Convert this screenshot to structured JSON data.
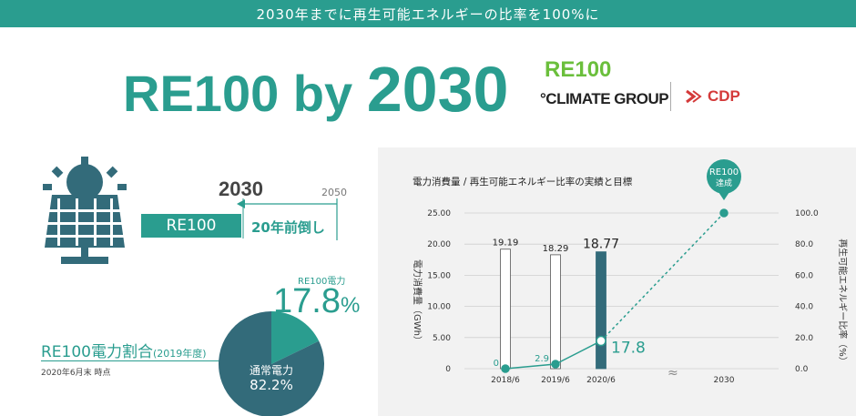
{
  "banner": "2030年までに再生可能エネルギーの比率を100%に",
  "headline": {
    "prefix": "RE100 by ",
    "year": "2030"
  },
  "logos": {
    "re100": "RE100",
    "climate_group": "°CLIMATE GROUP",
    "cdp": "CDP"
  },
  "timeline": {
    "year_target": "2030",
    "year_original": "2050",
    "bar_label": "RE100",
    "ahead_label": "20年前倒し"
  },
  "share": {
    "title": "RE100電力割合",
    "title_sub": "(2019年度)",
    "as_of": "2020年6月末 時点",
    "re100_label": "RE100電力",
    "re100_value": "17.8",
    "pct_sign": "%",
    "normal_label": "通常電力",
    "normal_value": "82.2%"
  },
  "colors": {
    "accent": "#2a9d8f",
    "dark_bar": "#336b7a",
    "pie_dark": "#336b7a",
    "panel_bg": "#f2f2f2"
  },
  "chart_data": {
    "type": "bar",
    "title": "電力消費量 / 再生可能エネルギー比率の実績と目標",
    "categories": [
      "2018/6",
      "2019/6",
      "2020/6",
      "2030"
    ],
    "y_left_label": "電力消費量（GWh）",
    "y_right_label": "再生可能エネルギー比率（%）",
    "y_left_ticks": [
      "0",
      "5.00",
      "10.00",
      "15.00",
      "20.00",
      "25.00"
    ],
    "y_right_ticks": [
      "0.0",
      "20.0",
      "40.0",
      "60.0",
      "80.0",
      "100.0"
    ],
    "ylim_left": [
      0,
      25
    ],
    "ylim_right": [
      0,
      100
    ],
    "bars": [
      {
        "category": "2018/6",
        "value": 19.19,
        "label": "19.19",
        "style": "outline"
      },
      {
        "category": "2019/6",
        "value": 18.29,
        "label": "18.29",
        "style": "outline"
      },
      {
        "category": "2020/6",
        "value": 18.77,
        "label": "18.77",
        "style": "filled"
      }
    ],
    "ratio": [
      {
        "category": "2018/6",
        "value": 0,
        "label": "0"
      },
      {
        "category": "2019/6",
        "value": 2.9,
        "label": "2.9"
      },
      {
        "category": "2020/6",
        "value": 17.8,
        "label": "17.8"
      },
      {
        "category": "2030",
        "value": 100,
        "label": ""
      }
    ],
    "target_callout": "RE100\n達成",
    "target_line1": "RE100",
    "target_line2": "達成",
    "axis_break": "≈",
    "grid": true
  }
}
